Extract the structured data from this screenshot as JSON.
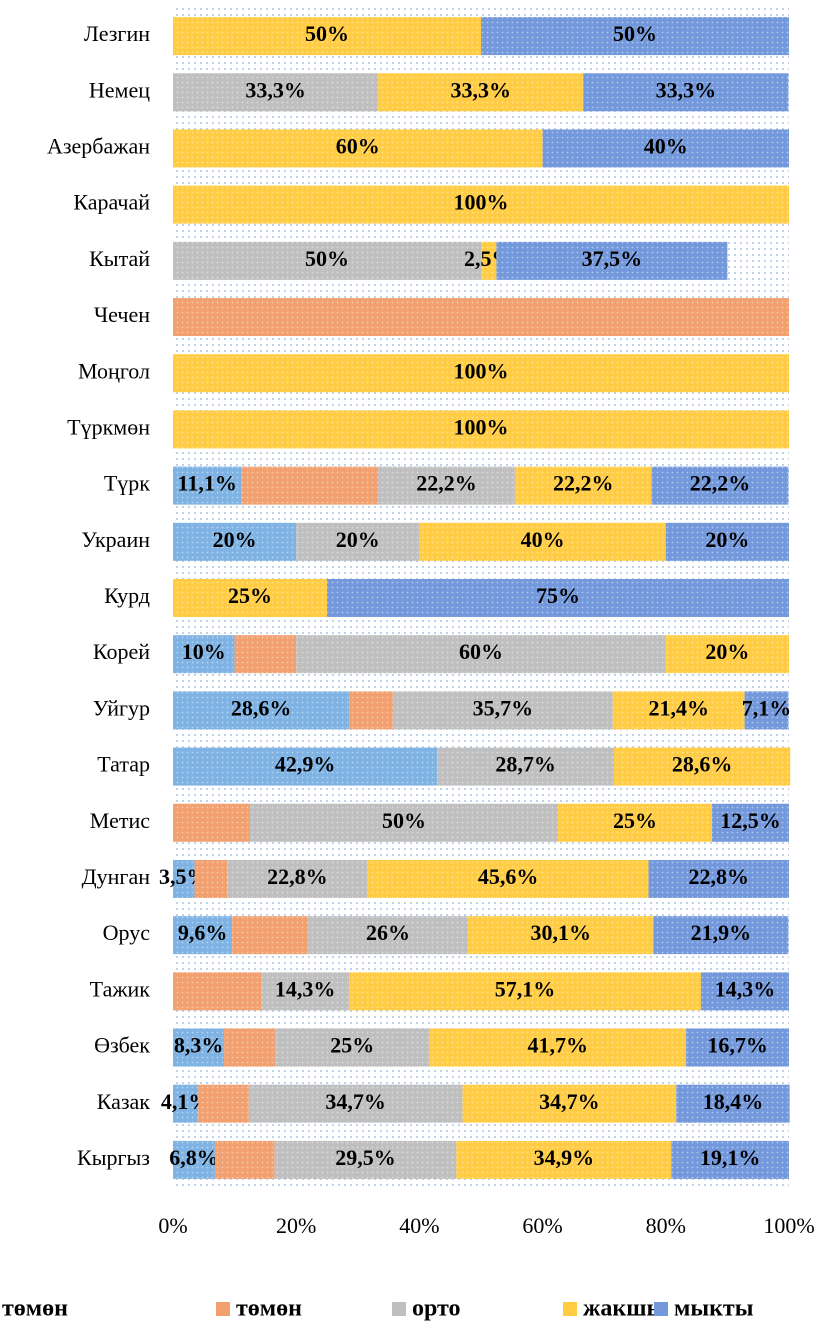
{
  "chart_data": {
    "type": "bar",
    "orientation": "horizontal",
    "stacked": true,
    "categories": [
      "Лезгин",
      "Немец",
      "Азербажан",
      "Карачай",
      "Кытай",
      "Чечен",
      "Моңгол",
      "Түркмөн",
      "Түрк",
      "Украин",
      "Курд",
      "Корей",
      "Уйгур",
      "Татар",
      "Метис",
      "Дунган",
      "Орус",
      "Тажик",
      "Өзбек",
      "Казак",
      "Кыргыз"
    ],
    "series": [
      {
        "name": "төмөн",
        "color": "#7fb3e3",
        "values": [
          0,
          0,
          0,
          0,
          0,
          0,
          0,
          0,
          11.1,
          20,
          0,
          10,
          28.6,
          42.9,
          0,
          3.5,
          9.6,
          0,
          8.3,
          4.1,
          6.8
        ],
        "value_labels": [
          null,
          null,
          null,
          null,
          null,
          null,
          null,
          null,
          "11,1%",
          "20%",
          null,
          "10%",
          "28,6%",
          "42,9%",
          null,
          "3,5%",
          "9,6%",
          null,
          "8,3%",
          "4,1%",
          "6,8%"
        ]
      },
      {
        "name": "төмөн",
        "color": "#f2a070",
        "values": [
          0,
          0,
          0,
          0,
          0,
          100,
          0,
          0,
          22.2,
          0,
          0,
          10,
          7.1,
          0,
          12.5,
          5.3,
          12.3,
          14.3,
          8.3,
          8.2,
          9.7
        ]
      },
      {
        "name": "орто",
        "color": "#bfbfbf",
        "values": [
          0,
          33.3,
          0,
          0,
          50,
          0,
          0,
          0,
          22.2,
          20,
          0,
          60,
          35.7,
          28.7,
          50,
          22.8,
          26,
          14.3,
          25,
          34.7,
          29.5
        ],
        "value_labels": [
          null,
          "33,3%",
          null,
          null,
          "50%",
          null,
          null,
          null,
          "22,2%",
          "20%",
          null,
          "60%",
          "35,7%",
          "28,7%",
          "50%",
          "22,8%",
          "26%",
          "14,3%",
          "25%",
          "34,7%",
          "29,5%"
        ]
      },
      {
        "name": "жакшы",
        "color": "#ffcc44",
        "values": [
          50,
          33.3,
          60,
          100,
          2.5,
          0,
          100,
          100,
          22.2,
          40,
          25,
          20,
          21.4,
          28.6,
          25,
          45.6,
          30.1,
          57.1,
          41.7,
          34.7,
          34.9
        ],
        "value_labels": [
          "50%",
          "33,3%",
          "60%",
          "100%",
          "2,5%",
          null,
          "100%",
          "100%",
          "22,2%",
          "40%",
          "25%",
          "20%",
          "21,4%",
          "28,6%",
          "25%",
          "45,6%",
          "30,1%",
          "57,1%",
          "41,7%",
          "34,7%",
          "34,9%"
        ]
      },
      {
        "name": "мыкты",
        "color": "#7399dc",
        "values": [
          50,
          33.3,
          40,
          0,
          37.5,
          0,
          0,
          0,
          22.2,
          20,
          75,
          0,
          7.1,
          0,
          12.5,
          22.8,
          21.9,
          14.3,
          16.7,
          18.4,
          19.1
        ],
        "value_labels": [
          "50%",
          "33,3%",
          "40%",
          null,
          "37,5%",
          null,
          null,
          null,
          "22,2%",
          "20%",
          "75%",
          null,
          "7,1%",
          null,
          "12,5%",
          "22,8%",
          "21,9%",
          "14,3%",
          "16,7%",
          "18,4%",
          "19,1%"
        ]
      }
    ],
    "xlim": [
      0,
      100
    ],
    "xticks": [
      {
        "value": 0,
        "label": "0%"
      },
      {
        "value": 20,
        "label": "20%"
      },
      {
        "value": 40,
        "label": "40%"
      },
      {
        "value": 60,
        "label": "60%"
      },
      {
        "value": 80,
        "label": "80%"
      },
      {
        "value": 100,
        "label": "100%"
      }
    ],
    "legend": "bottom"
  }
}
